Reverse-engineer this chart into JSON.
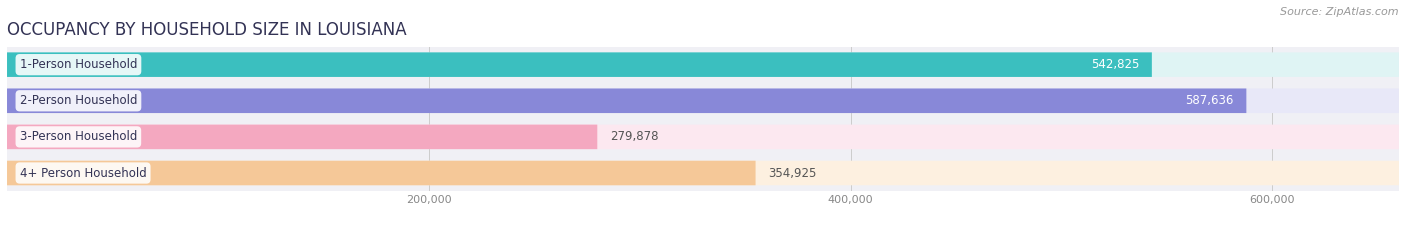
{
  "title": "OCCUPANCY BY HOUSEHOLD SIZE IN LOUISIANA",
  "source": "Source: ZipAtlas.com",
  "categories": [
    "1-Person Household",
    "2-Person Household",
    "3-Person Household",
    "4+ Person Household"
  ],
  "values": [
    542825,
    587636,
    279878,
    354925
  ],
  "bar_colors": [
    "#3bbfbf",
    "#8888d8",
    "#f4a8c0",
    "#f5c898"
  ],
  "bar_bg_colors": [
    "#dff4f4",
    "#e8e8f8",
    "#fce8f0",
    "#fdf0e0"
  ],
  "value_label_inside": [
    true,
    true,
    false,
    false
  ],
  "xlim": [
    0,
    660000
  ],
  "xticks": [
    200000,
    400000,
    600000
  ],
  "xtick_labels": [
    "200,000",
    "400,000",
    "600,000"
  ],
  "title_fontsize": 12,
  "source_fontsize": 8,
  "bar_label_fontsize": 8.5,
  "category_fontsize": 8.5,
  "figsize": [
    14.06,
    2.33
  ],
  "dpi": 100
}
